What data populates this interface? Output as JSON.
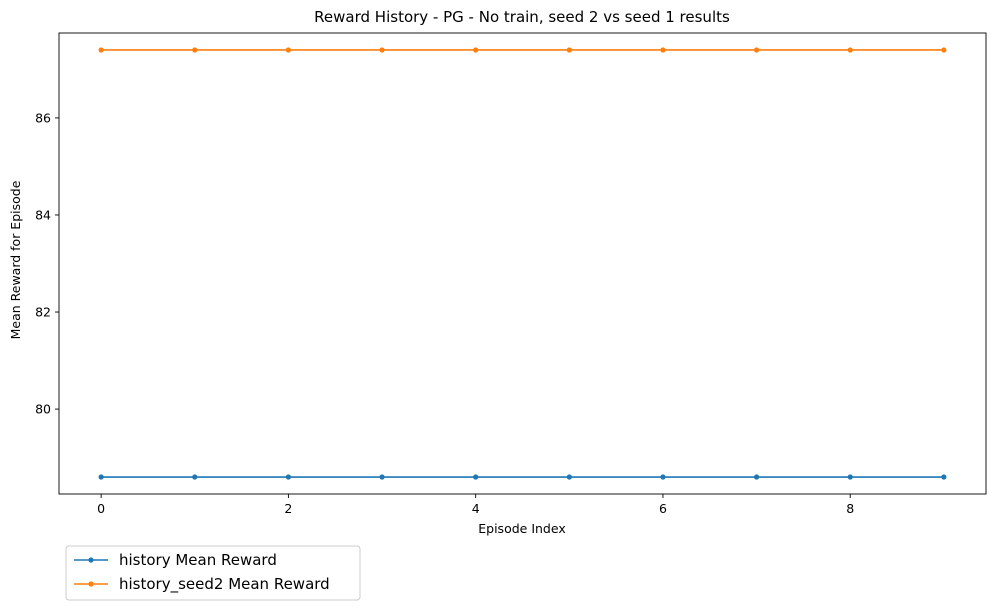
{
  "chart_data": {
    "type": "line",
    "title": "Reward History - PG - No train, seed 2 vs seed 1 results",
    "xlabel": "Episode Index",
    "ylabel": "Mean Reward for Episode",
    "x": [
      0,
      1,
      2,
      3,
      4,
      5,
      6,
      7,
      8,
      9
    ],
    "xlim": [
      -0.45,
      9.45
    ],
    "ylim": [
      78.25,
      87.75
    ],
    "xticks": [
      0,
      2,
      4,
      6,
      8
    ],
    "yticks": [
      80,
      82,
      84,
      86
    ],
    "xtick_labels": [
      "0",
      "2",
      "4",
      "6",
      "8"
    ],
    "ytick_labels": [
      "80",
      "82",
      "84",
      "86"
    ],
    "grid": false,
    "legend_position": "below-left",
    "series": [
      {
        "name": "history Mean Reward",
        "color": "#1f77b4",
        "marker": "circle",
        "values": [
          78.6,
          78.6,
          78.6,
          78.6,
          78.6,
          78.6,
          78.6,
          78.6,
          78.6,
          78.6
        ]
      },
      {
        "name": "history_seed2 Mean Reward",
        "color": "#ff7f0e",
        "marker": "circle",
        "values": [
          87.4,
          87.4,
          87.4,
          87.4,
          87.4,
          87.4,
          87.4,
          87.4,
          87.4,
          87.4
        ]
      }
    ]
  }
}
